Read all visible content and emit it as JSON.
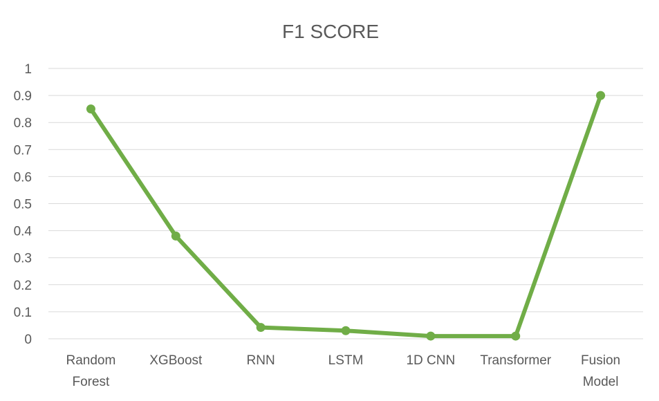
{
  "chart_data": {
    "type": "line",
    "title": "F1 SCORE",
    "xlabel": "",
    "ylabel": "",
    "categories": [
      [
        "Random",
        "Forest"
      ],
      [
        "XGBoost"
      ],
      [
        "RNN"
      ],
      [
        "LSTM"
      ],
      [
        "1D CNN"
      ],
      [
        "Transformer"
      ],
      [
        "Fusion",
        "Model"
      ]
    ],
    "series": [
      {
        "values": [
          0.85,
          0.38,
          0.042,
          0.03,
          0.01,
          0.01,
          0.9
        ]
      }
    ],
    "ylim": [
      0,
      1
    ],
    "yticks": [
      "0",
      "0.1",
      "0.2",
      "0.3",
      "0.4",
      "0.5",
      "0.6",
      "0.7",
      "0.8",
      "0.9",
      "1"
    ],
    "grid": true,
    "legend": "none",
    "colors": {
      "line": "#70ad47",
      "marker": "#70ad47"
    }
  }
}
